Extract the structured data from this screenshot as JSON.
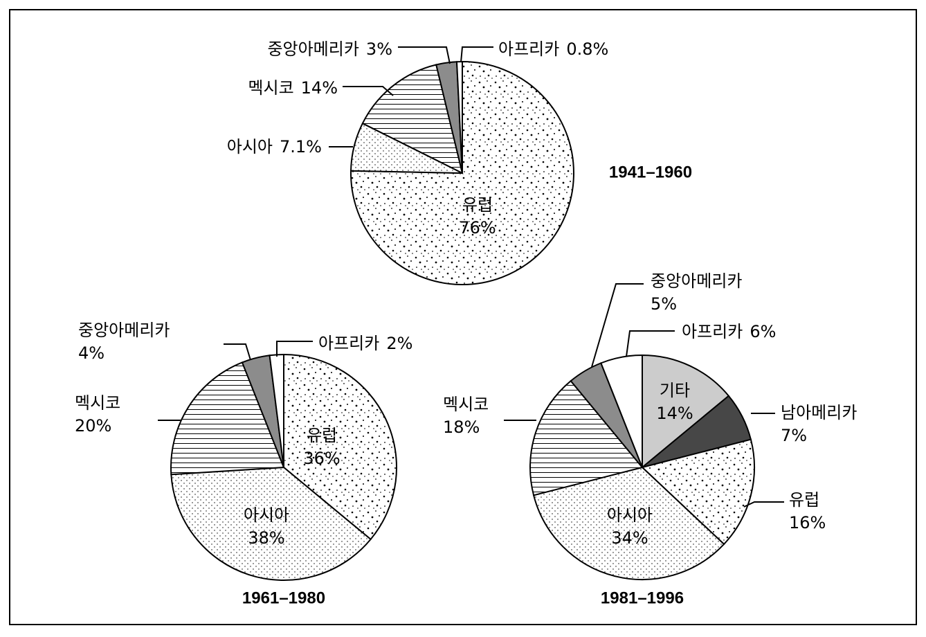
{
  "chart_data": [
    {
      "type": "pie",
      "title": "1941–1960",
      "categories": [
        "유럽",
        "아시아",
        "멕시코",
        "중앙아메리카",
        "아프리카"
      ],
      "values": [
        76,
        7.1,
        14,
        3,
        0.8
      ],
      "value_labels": [
        "76%",
        "7.1%",
        "14%",
        "3%",
        "0.8%"
      ],
      "colors": [
        "url(#p-dense)",
        "url(#p-light)",
        "url(#p-hline)",
        "#8c8c8c",
        "#ffffff"
      ]
    },
    {
      "type": "pie",
      "title": "1961–1980",
      "categories": [
        "유럽",
        "아시아",
        "멕시코",
        "중앙아메리카",
        "아프리카"
      ],
      "values": [
        36,
        38,
        20,
        4,
        2
      ],
      "value_labels": [
        "36%",
        "38%",
        "20%",
        "4%",
        "2%"
      ],
      "colors": [
        "url(#p-dense)",
        "url(#p-light)",
        "url(#p-hline)",
        "#8c8c8c",
        "#ffffff"
      ]
    },
    {
      "type": "pie",
      "title": "1981–1996",
      "categories": [
        "기타",
        "남아메리카",
        "유럽",
        "아시아",
        "멕시코",
        "중앙아메리카",
        "아프리카"
      ],
      "values": [
        14,
        7,
        16,
        34,
        18,
        5,
        6
      ],
      "value_labels": [
        "14%",
        "7%",
        "16%",
        "34%",
        "18%",
        "5%",
        "6%"
      ],
      "colors": [
        "#cccccc",
        "#474747",
        "url(#p-dense)",
        "url(#p-light)",
        "url(#p-hline)",
        "#8c8c8c",
        "#ffffff"
      ]
    }
  ]
}
